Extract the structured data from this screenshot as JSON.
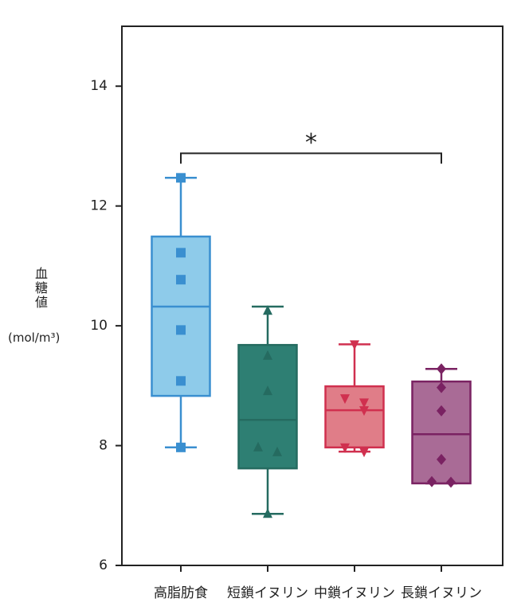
{
  "chart_data": {
    "type": "box",
    "y_label": "血糖値",
    "y_unit": "(mol/m³)",
    "categories": [
      "高脂肪食",
      "短鎖イヌリン",
      "中鎖イヌリン",
      "長鎖イヌリン"
    ],
    "boxes": [
      {
        "whislo": 7.97,
        "q1": 8.83,
        "med": 10.32,
        "q3": 11.49,
        "whishi": 12.47,
        "points": [
          12.47,
          11.22,
          10.77,
          9.93,
          9.08,
          7.97
        ],
        "marker": "square",
        "fill": "#8ecbea",
        "color": "#3a8fd0"
      },
      {
        "whislo": 6.86,
        "q1": 7.62,
        "med": 8.43,
        "q3": 9.68,
        "whishi": 10.32,
        "points": [
          10.25,
          9.5,
          8.91,
          7.97,
          7.89,
          6.86
        ],
        "marker": "triangle-up",
        "fill": "#2e7f73",
        "color": "#256b60"
      },
      {
        "whislo": 7.9,
        "q1": 7.97,
        "med": 8.59,
        "q3": 8.99,
        "whishi": 9.69,
        "points": [
          9.69,
          8.79,
          8.72,
          8.59,
          7.97,
          7.9
        ],
        "marker": "triangle-down",
        "fill": "#e07d88",
        "color": "#d0304f"
      },
      {
        "whislo": 7.37,
        "q1": 7.37,
        "med": 8.19,
        "q3": 9.07,
        "whishi": 9.28,
        "points": [
          9.28,
          8.97,
          8.58,
          7.77,
          7.4,
          7.39
        ],
        "marker": "diamond",
        "fill": "#a96b96",
        "color": "#7a2262"
      }
    ],
    "significance": {
      "text": "*",
      "between": [
        "高脂肪食",
        "長鎖イヌリン"
      ],
      "y": 12.88
    },
    "ylim": [
      6,
      15
    ],
    "yticks": [
      6,
      8,
      10,
      12,
      14
    ],
    "grid": false
  }
}
